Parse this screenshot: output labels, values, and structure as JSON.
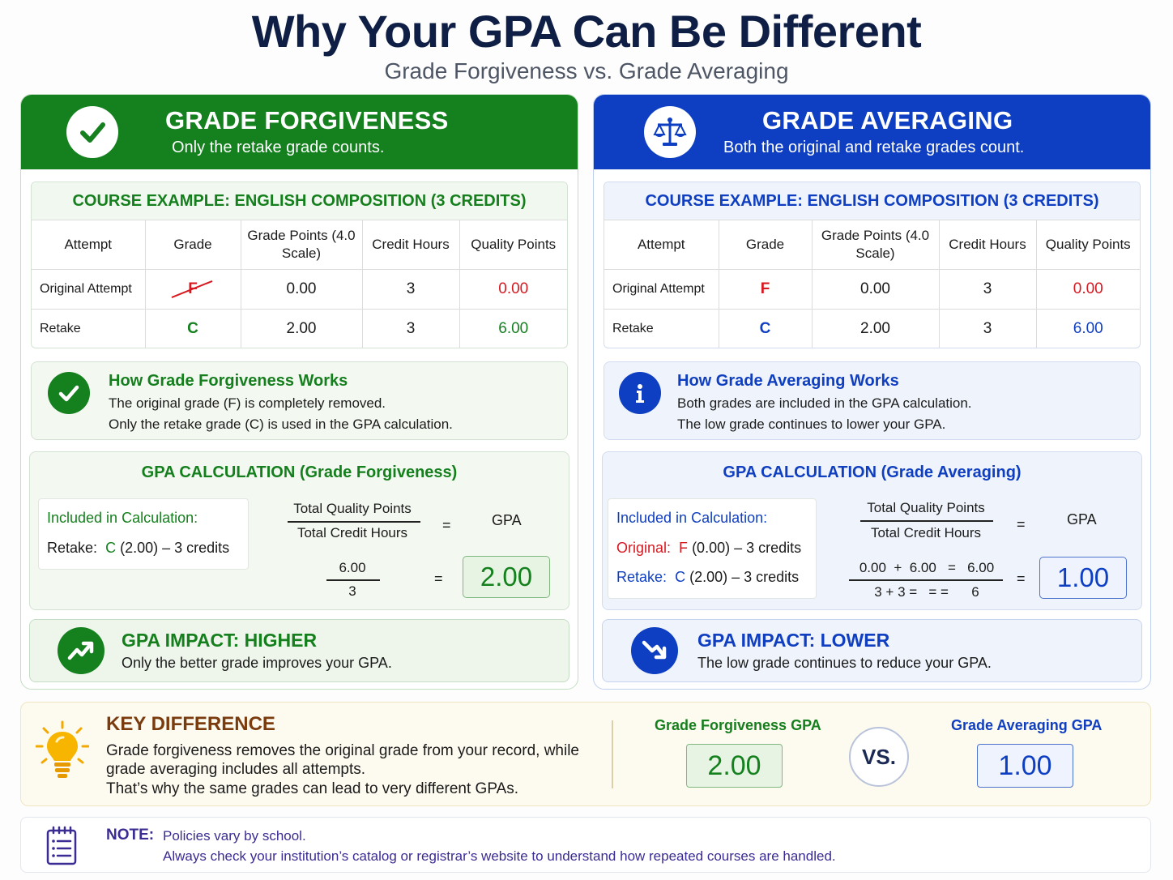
{
  "header": {
    "title": "Why Your GPA Can Be Different",
    "subtitle": "Grade Forgiveness vs. Grade Averaging"
  },
  "colors": {
    "forgiveness_green": "#14801e",
    "averaging_blue": "#0e3fc2",
    "fail_red": "#d71921",
    "key_brown": "#7a3c0e"
  },
  "table_headers": [
    "Attempt",
    "Grade",
    "Grade Points (4.0 Scale)",
    "Credit Hours",
    "Quality Points"
  ],
  "forgiveness": {
    "icon": "check-circle-icon",
    "title": "GRADE FORGIVENESS",
    "subtitle": "Only the retake grade counts.",
    "course_title": "COURSE EXAMPLE: ENGLISH COMPOSITION (3 CREDITS)",
    "rows": [
      {
        "attempt": "Original Attempt",
        "grade": "F",
        "grade_points": "0.00",
        "credit_hours": "3",
        "quality_points": "0.00"
      },
      {
        "attempt": "Retake",
        "grade": "C",
        "grade_points": "2.00",
        "credit_hours": "3",
        "quality_points": "6.00"
      }
    ],
    "how_title": "How Grade Forgiveness Works",
    "how_lines": [
      "The original grade (F) is completely removed.",
      "Only the retake grade (C) is used in the GPA calculation."
    ],
    "calc_title": "GPA CALCULATION (Grade Forgiveness)",
    "included_title": "Included in Calculation:",
    "included": [
      {
        "label": "Retake:",
        "grade": "C",
        "detail": "(2.00) – 3 credits"
      }
    ],
    "formula_top": "Total Quality Points",
    "formula_bottom": "Total Credit Hours",
    "equals": "=",
    "gpa_label": "GPA",
    "calc_top": "6.00",
    "calc_bottom": "3",
    "gpa": "2.00",
    "impact_icon": "trend-up-icon",
    "impact_title": "GPA IMPACT: HIGHER",
    "impact_sub": "Only the better grade improves your GPA."
  },
  "averaging": {
    "icon": "scale-icon",
    "title": "GRADE AVERAGING",
    "subtitle": "Both the original and retake grades count.",
    "course_title": "COURSE EXAMPLE: ENGLISH COMPOSITION (3 CREDITS)",
    "rows": [
      {
        "attempt": "Original Attempt",
        "grade": "F",
        "grade_points": "0.00",
        "credit_hours": "3",
        "quality_points": "0.00"
      },
      {
        "attempt": "Retake",
        "grade": "C",
        "grade_points": "2.00",
        "credit_hours": "3",
        "quality_points": "6.00"
      }
    ],
    "how_title": "How Grade Averaging Works",
    "how_lines": [
      "Both grades are included in the GPA calculation.",
      "The low grade continues to lower your GPA."
    ],
    "calc_title": "GPA CALCULATION (Grade Averaging)",
    "included_title": "Included in Calculation:",
    "included": [
      {
        "label": "Original:",
        "grade": "F",
        "detail": "(0.00) – 3 credits"
      },
      {
        "label": "Retake:",
        "grade": "C",
        "detail": "(2.00) – 3 credits"
      }
    ],
    "formula_top": "Total Quality Points",
    "formula_bottom": "Total Credit Hours",
    "equals": "=",
    "gpa_label": "GPA",
    "calc_top": "0.00  +  6.00   =   6.00",
    "calc_bottom": "3 + 3 =   = =      6",
    "gpa": "1.00",
    "impact_icon": "trend-down-icon",
    "impact_title": "GPA IMPACT: LOWER",
    "impact_sub": "The low grade continues to reduce your GPA."
  },
  "key": {
    "icon": "lightbulb-icon",
    "title": "KEY DIFFERENCE",
    "lines": [
      "Grade forgiveness removes the original grade from your record, while",
      "grade averaging includes all attempts.",
      "That’s why the same grades can lead to very different GPAs."
    ],
    "forgiveness_label": "Grade Forgiveness GPA",
    "forgiveness_gpa": "2.00",
    "vs": "VS.",
    "averaging_label": "Grade Averaging GPA",
    "averaging_gpa": "1.00"
  },
  "note": {
    "icon": "notepad-icon",
    "label": "NOTE:",
    "line1": "Policies vary by school.",
    "line2": "Always check your institution’s catalog or registrar’s website to understand how repeated courses are handled."
  }
}
